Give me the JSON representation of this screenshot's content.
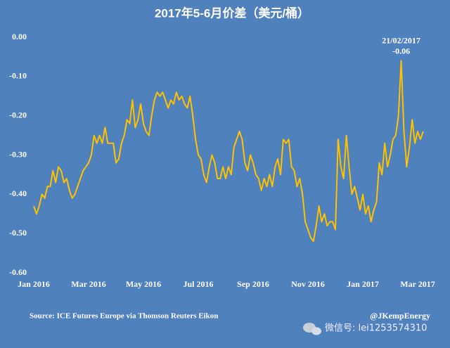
{
  "chart_data": {
    "type": "line",
    "title": "2017年5-6月价差（美元/桶）",
    "categories": [
      "Jan 2016",
      null,
      null,
      null,
      null,
      null,
      null,
      null,
      null,
      null,
      null,
      null,
      null,
      null,
      null,
      null,
      null,
      null,
      null,
      null,
      "Mar 2016",
      null,
      null,
      null,
      null,
      null,
      null,
      null,
      null,
      null,
      null,
      null,
      null,
      null,
      null,
      null,
      null,
      null,
      null,
      null,
      "May 2016",
      null,
      null,
      null,
      null,
      null,
      null,
      null,
      null,
      null,
      null,
      null,
      null,
      null,
      null,
      null,
      null,
      null,
      null,
      null,
      "Jul 2016",
      null,
      null,
      null,
      null,
      null,
      null,
      null,
      null,
      null,
      null,
      null,
      null,
      null,
      null,
      null,
      null,
      null,
      null,
      null,
      "Sep 2016",
      null,
      null,
      null,
      null,
      null,
      null,
      null,
      null,
      null,
      null,
      null,
      null,
      null,
      null,
      null,
      null,
      null,
      null,
      null,
      "Nov 2016",
      null,
      null,
      null,
      null,
      null,
      null,
      null,
      null,
      null,
      null,
      null,
      null,
      null,
      null,
      null,
      null,
      null,
      null,
      null,
      "Jan 2017",
      null,
      null,
      null,
      null,
      null,
      null,
      null,
      null,
      null,
      null,
      null,
      null,
      null,
      null,
      null,
      null,
      null,
      null,
      null,
      "Mar 2017",
      null,
      null
    ],
    "values": [
      -0.43,
      -0.45,
      -0.43,
      -0.4,
      -0.41,
      -0.38,
      -0.38,
      -0.34,
      -0.37,
      -0.33,
      -0.34,
      -0.37,
      -0.36,
      -0.39,
      -0.41,
      -0.4,
      -0.38,
      -0.36,
      -0.34,
      -0.33,
      -0.32,
      -0.3,
      -0.25,
      -0.27,
      -0.25,
      -0.27,
      -0.23,
      -0.27,
      -0.27,
      -0.27,
      -0.32,
      -0.31,
      -0.27,
      -0.25,
      -0.21,
      -0.22,
      -0.16,
      -0.23,
      -0.21,
      -0.17,
      -0.22,
      -0.24,
      -0.25,
      -0.2,
      -0.16,
      -0.14,
      -0.15,
      -0.14,
      -0.16,
      -0.18,
      -0.16,
      -0.17,
      -0.14,
      -0.16,
      -0.15,
      -0.17,
      -0.18,
      -0.15,
      -0.2,
      -0.26,
      -0.3,
      -0.31,
      -0.35,
      -0.37,
      -0.33,
      -0.3,
      -0.32,
      -0.36,
      -0.36,
      -0.33,
      -0.36,
      -0.33,
      -0.35,
      -0.28,
      -0.26,
      -0.24,
      -0.26,
      -0.32,
      -0.34,
      -0.3,
      -0.32,
      -0.35,
      -0.36,
      -0.39,
      -0.36,
      -0.38,
      -0.35,
      -0.38,
      -0.33,
      -0.31,
      -0.35,
      -0.26,
      -0.27,
      -0.26,
      -0.33,
      -0.34,
      -0.38,
      -0.36,
      -0.4,
      -0.47,
      -0.49,
      -0.51,
      -0.52,
      -0.48,
      -0.43,
      -0.47,
      -0.45,
      -0.48,
      -0.47,
      -0.47,
      -0.49,
      -0.26,
      -0.33,
      -0.36,
      -0.25,
      -0.33,
      -0.4,
      -0.38,
      -0.41,
      -0.44,
      -0.4,
      -0.45,
      -0.43,
      -0.47,
      -0.44,
      -0.42,
      -0.32,
      -0.35,
      -0.27,
      -0.33,
      -0.3,
      -0.26,
      -0.25,
      -0.2,
      -0.06,
      -0.24,
      -0.33,
      -0.28,
      -0.21,
      -0.27,
      -0.24,
      -0.26,
      -0.24
    ],
    "color": "#ffc000",
    "ylim": [
      -0.6,
      0
    ],
    "yticks": [
      {
        "value": 0,
        "label": "0.00"
      },
      {
        "value": -0.1,
        "label": "-0.10"
      },
      {
        "value": -0.2,
        "label": "-0.20"
      },
      {
        "value": -0.3,
        "label": "-0.30"
      },
      {
        "value": -0.4,
        "label": "-0.40"
      },
      {
        "value": -0.5,
        "label": "-0.50"
      },
      {
        "value": -0.6,
        "label": "-0.60"
      }
    ],
    "grid": false,
    "annotation": {
      "date": "21/02/2017",
      "label": "-0.06"
    },
    "source": "Source: ICE Futures Europe via Thomson Reuters Eikon",
    "credit": "@JKempEnergy",
    "watermark": "微信号: lei1253574310"
  }
}
